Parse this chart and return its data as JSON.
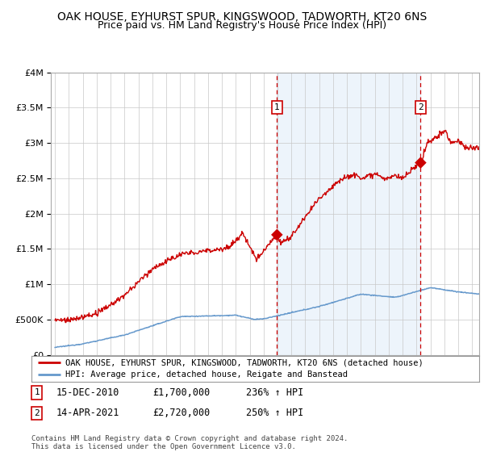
{
  "title": "OAK HOUSE, EYHURST SPUR, KINGSWOOD, TADWORTH, KT20 6NS",
  "subtitle": "Price paid vs. HM Land Registry's House Price Index (HPI)",
  "title_fontsize": 10,
  "subtitle_fontsize": 9,
  "background_color": "#ffffff",
  "plot_bg_color": "#ffffff",
  "grid_color": "#c8c8c8",
  "highlight_bg_color": "#ddeeff",
  "transaction1_date_num": 2010.96,
  "transaction1_label": "1",
  "transaction1_value": 1700000,
  "transaction2_date_num": 2021.29,
  "transaction2_label": "2",
  "transaction2_value": 2720000,
  "legend_entries": [
    "OAK HOUSE, EYHURST SPUR, KINGSWOOD, TADWORTH, KT20 6NS (detached house)",
    "HPI: Average price, detached house, Reigate and Banstead"
  ],
  "legend_colors": [
    "#cc0000",
    "#6699cc"
  ],
  "footer": "Contains HM Land Registry data © Crown copyright and database right 2024.\nThis data is licensed under the Open Government Licence v3.0.",
  "ylim": [
    0,
    4000000
  ],
  "xlim_start": 1994.7,
  "xlim_end": 2025.5,
  "ann_data": [
    [
      "1",
      "15-DEC-2010",
      "£1,700,000",
      "236% ↑ HPI"
    ],
    [
      "2",
      "14-APR-2021",
      "£2,720,000",
      "250% ↑ HPI"
    ]
  ]
}
